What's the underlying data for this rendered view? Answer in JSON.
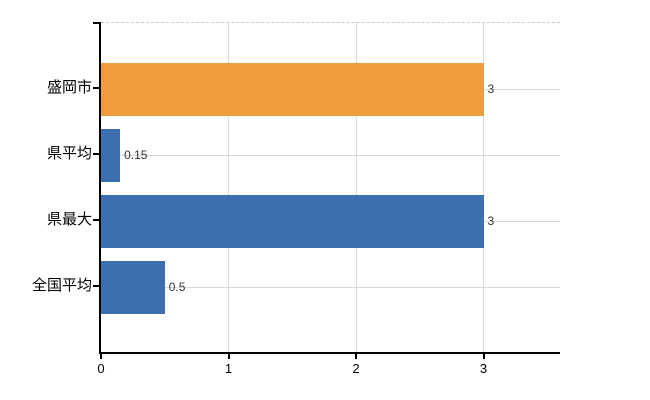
{
  "chart_data": {
    "type": "bar",
    "orientation": "horizontal",
    "title": "",
    "xlabel": "",
    "ylabel": "",
    "categories": [
      "盛岡市",
      "県平均",
      "県最大",
      "全国平均"
    ],
    "values": [
      3,
      0.15,
      3,
      0.5
    ],
    "data_labels": [
      "3",
      "0.15",
      "3",
      "0.5"
    ],
    "bar_colors": [
      "#ee9c3d",
      "#3b6faf",
      "#3b6faf",
      "#3b6faf"
    ],
    "x_tick_labels": [
      "0",
      "1",
      "2",
      "3"
    ],
    "x_tick_values": [
      0,
      1,
      2,
      3
    ],
    "xlim": [
      0,
      3.6
    ],
    "grid": true,
    "legend_position": "none",
    "colors": {
      "grid": "#d9d9d9",
      "top_border": "#c9c9c9",
      "axis": "#000000",
      "data_label_text": "#333333",
      "axis_label_text": "#000000",
      "background": "#ffffff"
    }
  }
}
